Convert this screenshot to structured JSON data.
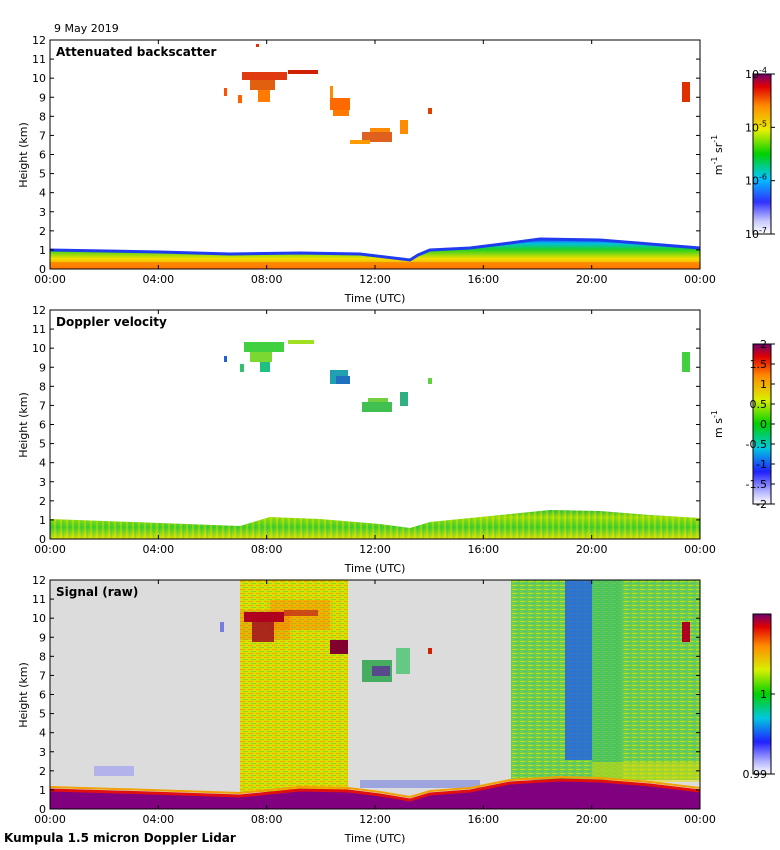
{
  "date_label": "9 May 2019",
  "footer": "Kumpula 1.5 micron Doppler Lidar",
  "chart_data": [
    {
      "type": "heatmap",
      "title": "Attenuated backscatter",
      "xlabel": "Time (UTC)",
      "ylabel": "Height (km)",
      "x_ticks": [
        "00:00",
        "04:00",
        "08:00",
        "12:00",
        "16:00",
        "20:00",
        "00:00"
      ],
      "y_ticks": [
        "0",
        "1",
        "2",
        "3",
        "4",
        "5",
        "6",
        "7",
        "8",
        "9",
        "10",
        "11",
        "12"
      ],
      "xlim_hours": [
        0,
        24
      ],
      "ylim_km": [
        0,
        12
      ],
      "colorbar": {
        "scale": "log",
        "range": [
          1e-07,
          0.0001
        ],
        "tick_labels": [
          {
            "base": "10",
            "exp": "-4"
          },
          {
            "base": "10",
            "exp": "-5"
          },
          {
            "base": "10",
            "exp": "-6"
          },
          {
            "base": "10",
            "exp": "-7"
          }
        ],
        "unit_parts": [
          "m",
          "-1",
          " sr",
          "-1"
        ]
      },
      "features": [
        {
          "name": "boundary layer",
          "t_start": 0,
          "t_end": 24,
          "h_top_km": [
            1.0,
            0.9,
            0.8,
            0.85,
            0.5,
            1.5,
            1.1
          ]
        },
        {
          "name": "cirrus",
          "t_start": 7.0,
          "t_end": 10.5,
          "h_km": [
            9.2,
            10.4
          ]
        },
        {
          "name": "falling cloud",
          "t_start": 10.5,
          "t_end": 11.0,
          "h_km": [
            8.2,
            9.2
          ]
        },
        {
          "name": "mid cloud",
          "t_start": 11.5,
          "t_end": 13.0,
          "h_km": [
            6.5,
            7.5
          ]
        },
        {
          "name": "cloud",
          "t_start": 23.6,
          "t_end": 23.8,
          "h_km": [
            9.0,
            9.8
          ]
        }
      ]
    },
    {
      "type": "heatmap",
      "title": "Doppler velocity",
      "xlabel": "Time (UTC)",
      "ylabel": "Height (km)",
      "x_ticks": [
        "00:00",
        "04:00",
        "08:00",
        "12:00",
        "16:00",
        "20:00",
        "00:00"
      ],
      "y_ticks": [
        "0",
        "1",
        "2",
        "3",
        "4",
        "5",
        "6",
        "7",
        "8",
        "9",
        "10",
        "11",
        "12"
      ],
      "xlim_hours": [
        0,
        24
      ],
      "ylim_km": [
        0,
        12
      ],
      "colorbar": {
        "range": [
          -2,
          2
        ],
        "tick_labels": [
          "2",
          "1.5",
          "1",
          "0.5",
          "0",
          "-0.5",
          "-1",
          "-1.5",
          "-2"
        ],
        "unit_parts": [
          "m s",
          "-1"
        ]
      }
    },
    {
      "type": "heatmap",
      "title": "Signal (raw)",
      "xlabel": "Time (UTC)",
      "ylabel": "Height (km)",
      "x_ticks": [
        "00:00",
        "04:00",
        "08:00",
        "12:00",
        "16:00",
        "20:00",
        "00:00"
      ],
      "y_ticks": [
        "0",
        "1",
        "2",
        "3",
        "4",
        "5",
        "6",
        "7",
        "8",
        "9",
        "10",
        "11",
        "12"
      ],
      "xlim_hours": [
        0,
        24
      ],
      "ylim_km": [
        0,
        12
      ],
      "colorbar": {
        "range": [
          0.99,
          1.01
        ],
        "tick_labels": [
          "1",
          "0.99"
        ]
      },
      "noisy_periods_hours": [
        [
          7.0,
          11.0
        ],
        [
          17.0,
          24.0
        ]
      ]
    }
  ]
}
